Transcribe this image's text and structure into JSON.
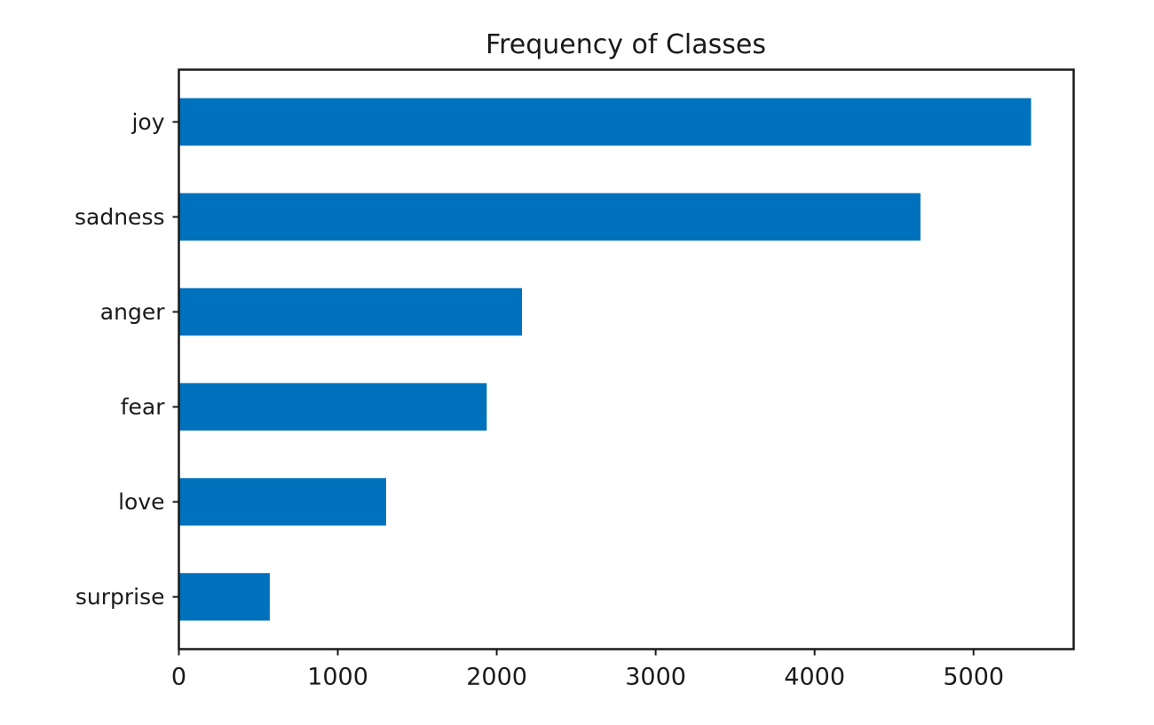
{
  "chart_data": {
    "type": "bar",
    "orientation": "horizontal",
    "title": "Frequency of Classes",
    "xlabel": "",
    "ylabel": "",
    "categories": [
      "joy",
      "sadness",
      "anger",
      "fear",
      "love",
      "surprise"
    ],
    "values": [
      5362,
      4666,
      2159,
      1937,
      1304,
      572
    ],
    "xlim": [
      0,
      5630
    ],
    "xticks": [
      0,
      1000,
      2000,
      3000,
      4000,
      5000
    ],
    "grid": false,
    "legend": "none",
    "bar_color": "#0071BC"
  }
}
